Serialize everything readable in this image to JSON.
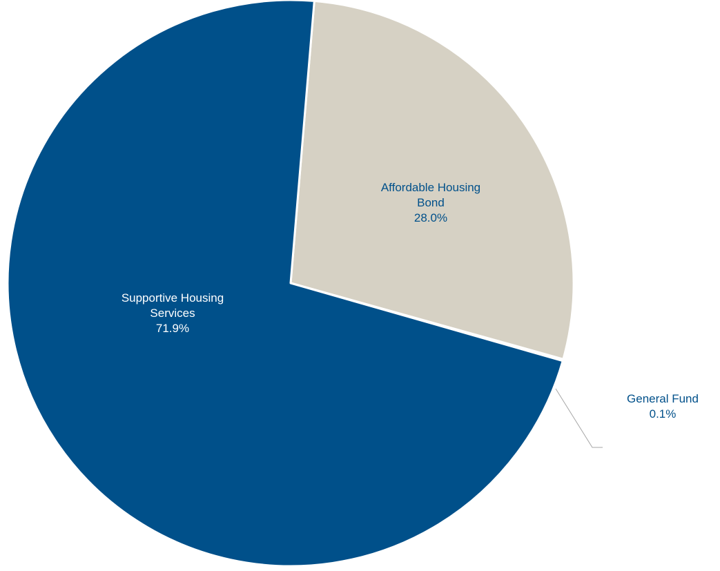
{
  "chart_data": {
    "type": "pie",
    "slices": [
      {
        "label_lines": [
          "Affordable Housing",
          "Bond"
        ],
        "value": 28.0,
        "value_label": "28.0%",
        "color": "#D6D1C4",
        "label_color": "#00508A"
      },
      {
        "label_lines": [
          "General Fund"
        ],
        "value": 0.1,
        "value_label": "0.1%",
        "color": "#D6D1C4",
        "label_color": "#00508A"
      },
      {
        "label_lines": [
          "Supportive Housing",
          "Services"
        ],
        "value": 71.9,
        "value_label": "71.9%",
        "color": "#00508A",
        "label_color": "#FFFFFF"
      }
    ],
    "start_angle_deg": 4.8,
    "direction": "clockwise",
    "border_color": "#FFFFFF",
    "leader_line_color": "#A6A6A6"
  }
}
